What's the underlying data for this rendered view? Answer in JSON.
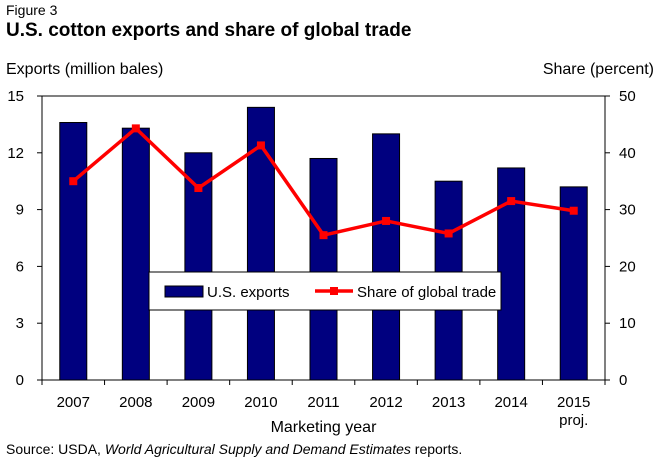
{
  "figure_label": "Figure 3",
  "title": "U.S. cotton exports and share of global trade",
  "source": {
    "prefix": "Source: USDA, ",
    "italic": "World Agricultural Supply and Demand Estimates",
    "suffix": " reports."
  },
  "chart_data": {
    "type": "bar",
    "categories": [
      "2007",
      "2008",
      "2009",
      "2010",
      "2011",
      "2012",
      "2013",
      "2014",
      "2015"
    ],
    "category_sublabels": [
      "",
      "",
      "",
      "",
      "",
      "",
      "",
      "",
      "proj."
    ],
    "xlabel": "Marketing year",
    "ylabel": "Exports (million bales)",
    "ylabel_right": "Share (percent)",
    "ylim": [
      0,
      15
    ],
    "yticks": [
      0,
      3,
      6,
      9,
      12,
      15
    ],
    "ylim_right": [
      0,
      50
    ],
    "yticks_right": [
      0,
      10,
      20,
      30,
      40,
      50
    ],
    "grid": false,
    "legend_position": "center",
    "series": [
      {
        "name": "U.S. exports",
        "type": "bar",
        "axis": "left",
        "color": "#00007F",
        "values": [
          13.6,
          13.3,
          12.0,
          14.4,
          11.7,
          13.0,
          10.5,
          11.2,
          10.2
        ]
      },
      {
        "name": "Share of global trade",
        "type": "line",
        "axis": "right",
        "color": "#FF0000",
        "values": [
          35.0,
          44.3,
          33.8,
          41.3,
          25.5,
          28.0,
          25.8,
          31.5,
          29.8
        ]
      }
    ]
  }
}
